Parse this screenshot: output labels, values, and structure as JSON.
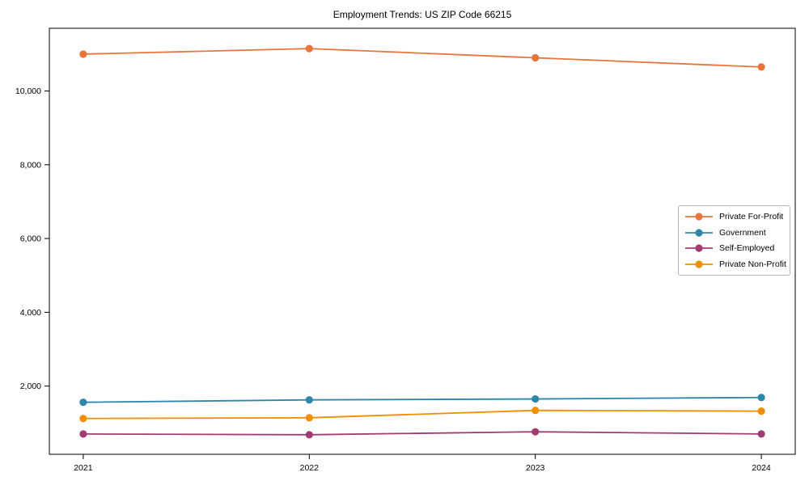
{
  "title": "Employment Trends: US ZIP Code 66215",
  "chart_data": {
    "type": "line",
    "title": "Employment Trends: US ZIP Code 66215",
    "xlabel": "",
    "ylabel": "",
    "x": [
      2021,
      2022,
      2023,
      2024
    ],
    "x_tick_labels": [
      "2021",
      "2022",
      "2023",
      "2024"
    ],
    "y_ticks": [
      2000,
      4000,
      6000,
      8000,
      10000
    ],
    "y_tick_labels": [
      "2,000",
      "4,000",
      "6,000",
      "8,000",
      "10,000"
    ],
    "xlim": [
      2020.85,
      2024.15
    ],
    "ylim": [
      150,
      11700
    ],
    "grid": false,
    "marker": "circle",
    "legend_position": "right",
    "series": [
      {
        "name": "Private For-Profit",
        "color": "#E8743B",
        "values": [
          11000,
          11150,
          10900,
          10650
        ]
      },
      {
        "name": "Government",
        "color": "#2E86AB",
        "values": [
          1560,
          1625,
          1650,
          1690
        ]
      },
      {
        "name": "Self-Employed",
        "color": "#A23B72",
        "values": [
          700,
          680,
          760,
          700
        ]
      },
      {
        "name": "Private Non-Profit",
        "color": "#F18F01",
        "values": [
          1120,
          1140,
          1340,
          1320
        ]
      }
    ]
  }
}
